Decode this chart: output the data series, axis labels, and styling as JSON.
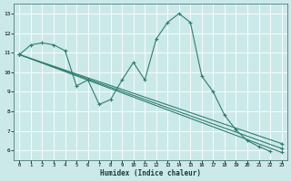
{
  "xlabel": "Humidex (Indice chaleur)",
  "xlim": [
    -0.5,
    23.5
  ],
  "ylim": [
    5.5,
    13.5
  ],
  "yticks": [
    6,
    7,
    8,
    9,
    10,
    11,
    12,
    13
  ],
  "xticks": [
    0,
    1,
    2,
    3,
    4,
    5,
    6,
    7,
    8,
    9,
    10,
    11,
    12,
    13,
    14,
    15,
    16,
    17,
    18,
    19,
    20,
    21,
    22,
    23
  ],
  "line_color": "#2e7d6e",
  "bg_color": "#cce9e9",
  "grid_color": "#ffffff",
  "series": [
    {
      "x": [
        0,
        1,
        2,
        3,
        4,
        5,
        6,
        7,
        8,
        9,
        10,
        11,
        12,
        13,
        14,
        15,
        16,
        17,
        18,
        19,
        20,
        21,
        22
      ],
      "y": [
        10.9,
        11.4,
        11.5,
        11.4,
        11.1,
        9.3,
        9.6,
        8.35,
        8.6,
        9.6,
        10.5,
        9.6,
        11.7,
        12.55,
        13.0,
        12.55,
        9.8,
        9.0,
        7.8,
        7.05,
        6.5,
        6.2,
        5.95
      ]
    },
    {
      "x": [
        0,
        23
      ],
      "y": [
        10.9,
        5.9
      ]
    },
    {
      "x": [
        0,
        23
      ],
      "y": [
        10.9,
        6.1
      ]
    },
    {
      "x": [
        0,
        23
      ],
      "y": [
        10.9,
        6.35
      ]
    }
  ]
}
